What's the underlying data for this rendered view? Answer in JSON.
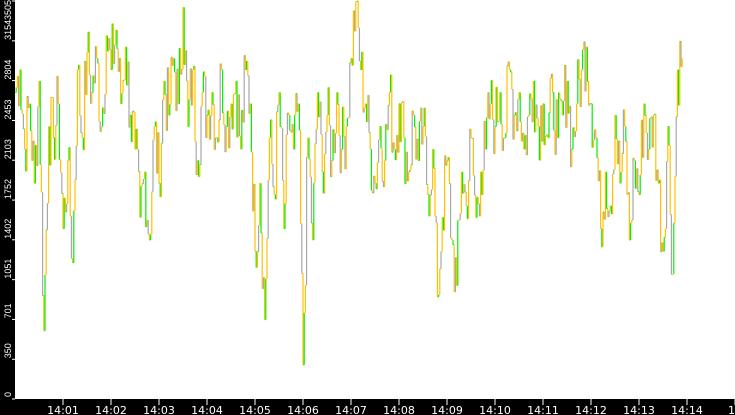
{
  "chart_data": {
    "type": "line",
    "title": "",
    "xlabel": "",
    "ylabel": "",
    "x_start": "14:00:00",
    "x_end": "14:15:00",
    "x_step_seconds": 6,
    "x_ticks": [
      "14:01",
      "14:02",
      "14:03",
      "14:04",
      "14:05",
      "14:06",
      "14:07",
      "14:08",
      "14:09",
      "14:10",
      "14:11",
      "14:12",
      "14:13",
      "14:14",
      "14"
    ],
    "y_ticks": [
      0,
      350,
      701,
      1051,
      1402,
      1752,
      2103,
      2453,
      2804,
      3154,
      3505
    ],
    "ylim": [
      0,
      3505
    ],
    "grid": false,
    "colors": {
      "series_a": "#FFC000",
      "series_b": "#00F000",
      "series_c": "#A8A8A8",
      "background": "#FFFFFF",
      "axis": "#000000"
    },
    "values": [
      2700,
      2900,
      2200,
      2600,
      1900,
      2800,
      600,
      2400,
      2300,
      2600,
      1500,
      2100,
      1200,
      2900,
      2300,
      3050,
      2700,
      3000,
      2400,
      3200,
      2900,
      3250,
      2600,
      3100,
      2500,
      2200,
      1600,
      2000,
      1400,
      2400,
      1900,
      2800,
      2500,
      3000,
      2600,
      3450,
      2400,
      2900,
      2100,
      2700,
      2500,
      2700,
      2300,
      2900,
      2400,
      2600,
      2800,
      2200,
      2900,
      2600,
      1300,
      1900,
      700,
      2300,
      1800,
      2700,
      1500,
      2500,
      2200,
      2600,
      300,
      2300,
      1400,
      2700,
      2000,
      2500,
      2100,
      2700,
      2200,
      2400,
      3000,
      3500,
      2900,
      2600,
      2200,
      1900,
      2400,
      2100,
      2700,
      2200,
      2600,
      2300,
      2000,
      2500,
      2100,
      2400,
      1800,
      2200,
      900,
      1600,
      2100,
      1400,
      1000,
      2000,
      1700,
      2300,
      1600,
      2000,
      2200,
      2600,
      2400,
      2700,
      2300,
      2900,
      2500,
      2700,
      2200,
      2500,
      2800,
      2400,
      2600,
      2300,
      2700,
      2300,
      2500,
      2800,
      2200,
      2600,
      2900,
      3100,
      2600,
      2300,
      1500,
      2000,
      1700,
      2500,
      1900,
      2400,
      1400,
      2100,
      1800,
      2600,
      2200,
      2500,
      1900,
      1300,
      2400,
      1100,
      2900,
      3000
    ]
  }
}
